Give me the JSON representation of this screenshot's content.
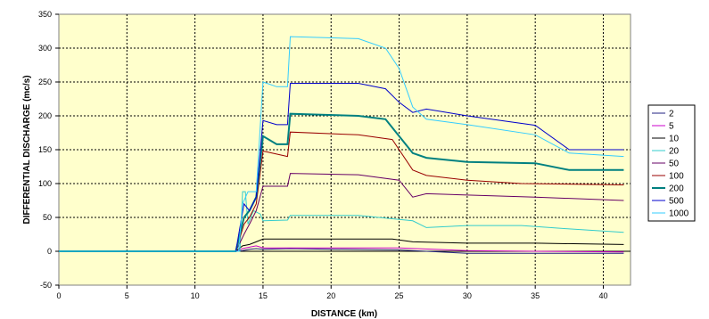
{
  "chart_data": {
    "type": "line",
    "title": "",
    "xlabel": "DISTANCE  (km)",
    "ylabel": "DIFFERENTIAL DISCHARGE (mc/s)",
    "xlim": [
      0,
      42
    ],
    "ylim": [
      -50,
      350
    ],
    "x_ticks": [
      "0",
      "5",
      "10",
      "15",
      "20",
      "25",
      "30",
      "35",
      "40"
    ],
    "y_ticks": [
      "-50",
      "0",
      "50",
      "100",
      "150",
      "200",
      "250",
      "300",
      "350"
    ],
    "grid": "dashed major gridlines",
    "legend_position": "right",
    "plot_background": "#ffffcc",
    "series": [
      {
        "name": "2",
        "color": "#202080",
        "points": [
          [
            0,
            0
          ],
          [
            13,
            0
          ],
          [
            13.5,
            1
          ],
          [
            14,
            3
          ],
          [
            14.5,
            4
          ],
          [
            15,
            3
          ],
          [
            17,
            4
          ],
          [
            20,
            3
          ],
          [
            25,
            2
          ],
          [
            30,
            -3
          ],
          [
            35,
            -3
          ],
          [
            41.5,
            -3
          ]
        ]
      },
      {
        "name": "5",
        "color": "#cc00cc",
        "points": [
          [
            0,
            0
          ],
          [
            13,
            0
          ],
          [
            13.5,
            4
          ],
          [
            14,
            6
          ],
          [
            14.5,
            8
          ],
          [
            15,
            5
          ],
          [
            17,
            5
          ],
          [
            20,
            5
          ],
          [
            25,
            5
          ],
          [
            30,
            1
          ],
          [
            35,
            0
          ],
          [
            41.5,
            -1
          ]
        ]
      },
      {
        "name": "10",
        "color": "#000000",
        "points": [
          [
            0,
            0
          ],
          [
            13,
            0
          ],
          [
            13.5,
            8
          ],
          [
            14,
            10
          ],
          [
            14.5,
            14
          ],
          [
            15,
            18
          ],
          [
            17,
            18
          ],
          [
            20,
            18
          ],
          [
            24.5,
            18
          ],
          [
            26,
            14
          ],
          [
            30,
            12
          ],
          [
            35,
            12
          ],
          [
            41.5,
            10
          ]
        ]
      },
      {
        "name": "20",
        "color": "#33cccc",
        "points": [
          [
            0,
            0
          ],
          [
            13.3,
            0
          ],
          [
            13.5,
            88
          ],
          [
            13.7,
            88
          ],
          [
            13.9,
            40
          ],
          [
            14.3,
            60
          ],
          [
            14.8,
            55
          ],
          [
            15,
            45
          ],
          [
            16.8,
            46
          ],
          [
            17,
            53
          ],
          [
            22,
            53
          ],
          [
            25,
            47
          ],
          [
            26,
            45
          ],
          [
            27,
            35
          ],
          [
            30,
            38
          ],
          [
            34,
            38
          ],
          [
            37.5,
            33
          ],
          [
            41.5,
            28
          ]
        ]
      },
      {
        "name": "50",
        "color": "#660066",
        "points": [
          [
            0,
            0
          ],
          [
            13,
            0
          ],
          [
            13.6,
            25
          ],
          [
            14,
            40
          ],
          [
            14.5,
            60
          ],
          [
            15,
            96
          ],
          [
            16.8,
            96
          ],
          [
            17,
            115
          ],
          [
            22,
            113
          ],
          [
            25,
            105
          ],
          [
            26,
            80
          ],
          [
            27,
            85
          ],
          [
            30,
            83
          ],
          [
            35,
            80
          ],
          [
            41.5,
            75
          ]
        ]
      },
      {
        "name": "100",
        "color": "#990000",
        "points": [
          [
            0,
            0
          ],
          [
            13,
            0
          ],
          [
            13.6,
            40
          ],
          [
            14,
            50
          ],
          [
            14.5,
            70
          ],
          [
            15,
            148
          ],
          [
            16.8,
            140
          ],
          [
            17,
            176
          ],
          [
            22,
            172
          ],
          [
            24.5,
            165
          ],
          [
            26,
            120
          ],
          [
            27,
            112
          ],
          [
            30,
            105
          ],
          [
            34,
            100
          ],
          [
            41.5,
            98
          ]
        ]
      },
      {
        "name": "200",
        "color": "#008080",
        "width": 2,
        "points": [
          [
            0,
            0
          ],
          [
            13,
            0
          ],
          [
            13.6,
            50
          ],
          [
            14,
            60
          ],
          [
            14.5,
            80
          ],
          [
            15,
            170
          ],
          [
            16,
            158
          ],
          [
            16.8,
            158
          ],
          [
            17,
            203
          ],
          [
            22,
            200
          ],
          [
            24,
            195
          ],
          [
            25,
            170
          ],
          [
            26,
            145
          ],
          [
            27,
            138
          ],
          [
            30,
            132
          ],
          [
            35,
            130
          ],
          [
            37.5,
            120
          ],
          [
            41.5,
            120
          ]
        ]
      },
      {
        "name": "500",
        "color": "#0000cc",
        "points": [
          [
            0,
            0
          ],
          [
            13,
            0
          ],
          [
            13.6,
            70
          ],
          [
            14,
            60
          ],
          [
            14.5,
            80
          ],
          [
            15,
            193
          ],
          [
            16,
            187
          ],
          [
            16.8,
            187
          ],
          [
            17,
            248
          ],
          [
            22,
            248
          ],
          [
            24,
            240
          ],
          [
            25,
            220
          ],
          [
            26,
            205
          ],
          [
            27,
            210
          ],
          [
            30,
            200
          ],
          [
            35,
            186
          ],
          [
            37.5,
            150
          ],
          [
            41.5,
            150
          ]
        ]
      },
      {
        "name": "1000",
        "color": "#33ccff",
        "points": [
          [
            0,
            0
          ],
          [
            13.2,
            0
          ],
          [
            13.5,
            70
          ],
          [
            13.9,
            88
          ],
          [
            14.5,
            88
          ],
          [
            15,
            250
          ],
          [
            16,
            243
          ],
          [
            16.8,
            243
          ],
          [
            17,
            317
          ],
          [
            22,
            314
          ],
          [
            24,
            300
          ],
          [
            25,
            270
          ],
          [
            26,
            213
          ],
          [
            27,
            195
          ],
          [
            30,
            187
          ],
          [
            35,
            172
          ],
          [
            37.5,
            145
          ],
          [
            41.5,
            140
          ]
        ]
      }
    ]
  }
}
